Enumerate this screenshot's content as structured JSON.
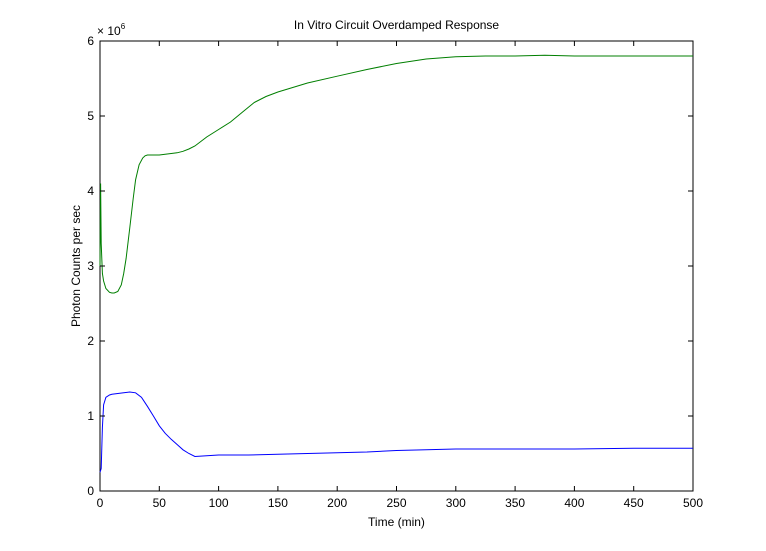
{
  "chart_data": {
    "type": "line",
    "title": "In Vitro Circuit Overdamped Response",
    "xlabel": "Time (min)",
    "ylabel": "Photon Counts per sec",
    "y_multiplier_label": "× 10",
    "y_multiplier_exponent": "6",
    "xlim": [
      0,
      500
    ],
    "ylim": [
      0,
      6
    ],
    "xticks": [
      0,
      50,
      100,
      150,
      200,
      250,
      300,
      350,
      400,
      450,
      500
    ],
    "yticks": [
      0,
      1,
      2,
      3,
      4,
      5,
      6
    ],
    "grid": false,
    "series": [
      {
        "color": "#007f00",
        "x": [
          0,
          0.5,
          1,
          2,
          3,
          5,
          8,
          10,
          12,
          15,
          18,
          20,
          22,
          25,
          28,
          30,
          33,
          36,
          38,
          40,
          42,
          45,
          50,
          55,
          60,
          65,
          70,
          75,
          80,
          90,
          100,
          110,
          120,
          130,
          140,
          150,
          175,
          200,
          225,
          250,
          275,
          300,
          325,
          350,
          375,
          400,
          425,
          450,
          475,
          500
        ],
        "y": [
          3.0,
          4.1,
          3.3,
          2.9,
          2.8,
          2.7,
          2.65,
          2.64,
          2.64,
          2.66,
          2.75,
          2.9,
          3.1,
          3.5,
          3.9,
          4.15,
          4.35,
          4.44,
          4.47,
          4.48,
          4.48,
          4.48,
          4.48,
          4.49,
          4.5,
          4.51,
          4.53,
          4.56,
          4.6,
          4.72,
          4.82,
          4.92,
          5.05,
          5.18,
          5.26,
          5.32,
          5.44,
          5.53,
          5.62,
          5.7,
          5.76,
          5.79,
          5.8,
          5.8,
          5.81,
          5.8,
          5.8,
          5.8,
          5.8,
          5.8
        ]
      },
      {
        "color": "#0000ff",
        "x": [
          0,
          1,
          2,
          3,
          5,
          8,
          10,
          15,
          20,
          25,
          30,
          35,
          40,
          45,
          50,
          55,
          60,
          65,
          70,
          75,
          80,
          90,
          100,
          125,
          150,
          175,
          200,
          225,
          250,
          275,
          300,
          350,
          400,
          450,
          500
        ],
        "y": [
          0.25,
          0.3,
          0.85,
          1.15,
          1.25,
          1.28,
          1.29,
          1.3,
          1.31,
          1.32,
          1.31,
          1.25,
          1.13,
          1.0,
          0.87,
          0.77,
          0.69,
          0.62,
          0.55,
          0.5,
          0.46,
          0.47,
          0.48,
          0.48,
          0.49,
          0.5,
          0.51,
          0.52,
          0.54,
          0.55,
          0.56,
          0.56,
          0.56,
          0.57,
          0.57
        ]
      }
    ]
  }
}
